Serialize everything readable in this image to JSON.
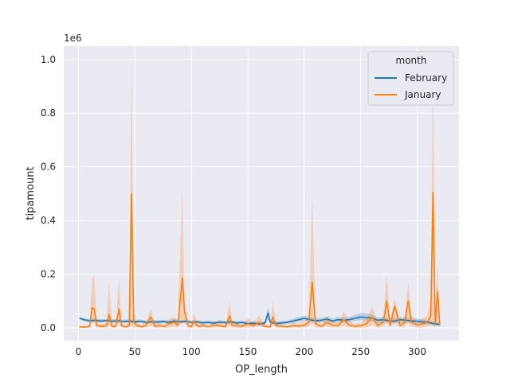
{
  "chart_data": {
    "type": "line",
    "title": "",
    "xlabel": "OP_length",
    "ylabel": "tipamount",
    "y_offset_text": "1e6",
    "xlim": [
      -13,
      337
    ],
    "ylim": [
      -48000,
      1050000
    ],
    "xticks": [
      0,
      50,
      100,
      150,
      200,
      250,
      300
    ],
    "xtick_labels": [
      "0",
      "50",
      "100",
      "150",
      "200",
      "250",
      "300"
    ],
    "yticks": [
      0,
      200000,
      400000,
      600000,
      800000,
      1000000
    ],
    "ytick_labels": [
      "0.0",
      "0.2",
      "0.4",
      "0.6",
      "0.8",
      "1.0"
    ],
    "grid": true,
    "legend": {
      "title": "month",
      "placement": "top-right"
    },
    "series": [
      {
        "name": "February",
        "color": "#1f77b4",
        "x": [
          1,
          5,
          10,
          15,
          20,
          25,
          30,
          35,
          40,
          45,
          50,
          55,
          60,
          65,
          70,
          75,
          80,
          85,
          90,
          95,
          100,
          105,
          110,
          115,
          120,
          125,
          130,
          135,
          140,
          145,
          150,
          155,
          160,
          165,
          168,
          170,
          175,
          180,
          185,
          190,
          195,
          200,
          205,
          210,
          215,
          220,
          225,
          230,
          235,
          240,
          245,
          250,
          255,
          260,
          265,
          270,
          275,
          280,
          285,
          290,
          295,
          300,
          305,
          310,
          315,
          320
        ],
        "y": [
          35000,
          30000,
          26000,
          28000,
          25000,
          27000,
          24000,
          26000,
          23000,
          25000,
          22000,
          24000,
          20000,
          22000,
          21000,
          23000,
          20000,
          25000,
          22000,
          24000,
          20000,
          22000,
          18000,
          20000,
          17000,
          21000,
          19000,
          22000,
          18000,
          20000,
          15000,
          17000,
          14000,
          17000,
          55000,
          20000,
          16000,
          18000,
          20000,
          25000,
          30000,
          35000,
          30000,
          26000,
          28000,
          32000,
          25000,
          30000,
          28000,
          30000,
          35000,
          40000,
          38000,
          36000,
          28000,
          30000,
          26000,
          25000,
          30000,
          28000,
          26000,
          24000,
          22000,
          20000,
          15000,
          12000
        ],
        "band_lo": [
          30000,
          25000,
          20000,
          22000,
          19000,
          21000,
          18000,
          20000,
          17000,
          19000,
          16000,
          18000,
          14000,
          16000,
          15000,
          17000,
          14000,
          18000,
          16000,
          18000,
          14000,
          16000,
          12000,
          14000,
          11000,
          15000,
          13000,
          16000,
          12000,
          14000,
          9000,
          11000,
          8000,
          11000,
          30000,
          14000,
          10000,
          12000,
          14000,
          18000,
          22000,
          27000,
          22000,
          18000,
          20000,
          24000,
          17000,
          21000,
          19000,
          21000,
          25000,
          28000,
          26000,
          24000,
          18000,
          20000,
          17000,
          16000,
          20000,
          18000,
          17000,
          15000,
          14000,
          12000,
          8000,
          6000
        ],
        "band_hi": [
          40000,
          36000,
          33000,
          35000,
          32000,
          34000,
          31000,
          33000,
          30000,
          32000,
          29000,
          31000,
          27000,
          29000,
          28000,
          30000,
          27000,
          33000,
          29000,
          31000,
          27000,
          29000,
          25000,
          27000,
          24000,
          28000,
          26000,
          29000,
          25000,
          27000,
          22000,
          24000,
          21000,
          24000,
          80000,
          27000,
          23000,
          25000,
          27000,
          33000,
          40000,
          45000,
          40000,
          35000,
          37000,
          42000,
          34000,
          40000,
          38000,
          40000,
          48000,
          55000,
          52000,
          50000,
          38000,
          40000,
          36000,
          35000,
          40000,
          38000,
          36000,
          34000,
          31000,
          29000,
          23000,
          20000
        ]
      },
      {
        "name": "January",
        "color": "#ff7f0e",
        "x": [
          1,
          5,
          10,
          12,
          14,
          16,
          20,
          25,
          27,
          30,
          33,
          36,
          38,
          42,
          45,
          47,
          49,
          52,
          56,
          60,
          64,
          68,
          72,
          76,
          80,
          85,
          88,
          92,
          94,
          97,
          100,
          102,
          106,
          110,
          115,
          120,
          125,
          130,
          134,
          136,
          140,
          145,
          150,
          155,
          160,
          165,
          170,
          172,
          175,
          180,
          185,
          190,
          195,
          200,
          204,
          207,
          210,
          215,
          220,
          225,
          230,
          235,
          240,
          245,
          250,
          255,
          260,
          265,
          270,
          273,
          276,
          280,
          285,
          289,
          292,
          295,
          300,
          305,
          309,
          312,
          314,
          316,
          318,
          320
        ],
        "y": [
          3000,
          2000,
          5000,
          75000,
          70000,
          10000,
          5000,
          8000,
          50000,
          4000,
          5000,
          70000,
          8000,
          3000,
          10000,
          500000,
          20000,
          8000,
          3000,
          10000,
          40000,
          5000,
          8000,
          4000,
          15000,
          20000,
          10000,
          185000,
          60000,
          8000,
          3000,
          25000,
          5000,
          8000,
          4000,
          10000,
          8000,
          3000,
          45000,
          10000,
          8000,
          5000,
          15000,
          8000,
          20000,
          5000,
          3000,
          40000,
          8000,
          5000,
          3000,
          8000,
          6000,
          10000,
          20000,
          170000,
          15000,
          5000,
          20000,
          10000,
          8000,
          30000,
          10000,
          5000,
          8000,
          15000,
          40000,
          8000,
          20000,
          100000,
          10000,
          80000,
          8000,
          20000,
          100000,
          20000,
          10000,
          15000,
          20000,
          45000,
          505000,
          15000,
          135000,
          10000
        ],
        "band_lo": [
          0,
          0,
          0,
          20000,
          20000,
          0,
          0,
          0,
          10000,
          0,
          0,
          20000,
          0,
          0,
          0,
          5000,
          0,
          0,
          0,
          0,
          5000,
          0,
          0,
          0,
          0,
          5000,
          0,
          20000,
          15000,
          0,
          0,
          5000,
          0,
          0,
          0,
          0,
          0,
          0,
          10000,
          0,
          0,
          0,
          0,
          0,
          5000,
          0,
          0,
          10000,
          0,
          0,
          0,
          0,
          0,
          0,
          5000,
          20000,
          0,
          0,
          5000,
          0,
          0,
          8000,
          0,
          0,
          0,
          0,
          10000,
          0,
          5000,
          20000,
          0,
          20000,
          0,
          5000,
          20000,
          5000,
          0,
          0,
          5000,
          10000,
          10000,
          0,
          20000,
          0
        ],
        "band_hi": [
          8000,
          6000,
          12000,
          180000,
          195000,
          30000,
          12000,
          20000,
          170000,
          10000,
          12000,
          185000,
          20000,
          8000,
          25000,
          1000000,
          60000,
          20000,
          8000,
          25000,
          70000,
          12000,
          20000,
          10000,
          35000,
          40000,
          25000,
          520000,
          100000,
          20000,
          8000,
          55000,
          12000,
          20000,
          10000,
          25000,
          20000,
          8000,
          100000,
          25000,
          20000,
          12000,
          35000,
          20000,
          45000,
          12000,
          8000,
          100000,
          20000,
          12000,
          8000,
          20000,
          15000,
          25000,
          45000,
          500000,
          35000,
          12000,
          45000,
          25000,
          20000,
          60000,
          25000,
          12000,
          20000,
          35000,
          80000,
          20000,
          45000,
          200000,
          25000,
          110000,
          20000,
          45000,
          165000,
          45000,
          25000,
          35000,
          45000,
          110000,
          1000000,
          35000,
          250000,
          25000
        ]
      }
    ]
  }
}
